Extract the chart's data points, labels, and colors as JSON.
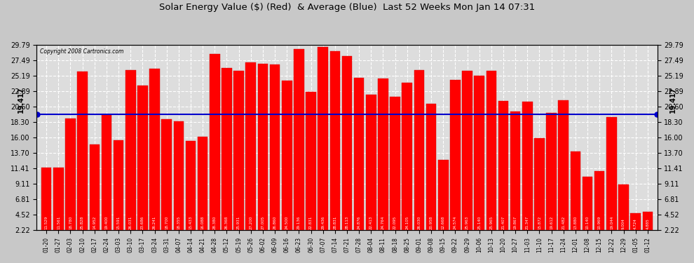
{
  "title": "Solar Energy Value ($) (Red)  & Average (Blue)  Last 52 Weeks Mon Jan 14 07:31",
  "copyright": "Copyright 2008 Cartronics.com",
  "average": 19.417,
  "ylim_min": 2.22,
  "ylim_max": 29.79,
  "yticks": [
    2.22,
    4.52,
    6.81,
    9.11,
    11.41,
    13.7,
    16.0,
    18.3,
    20.6,
    22.89,
    25.19,
    27.49,
    29.79
  ],
  "bar_color": "#FF0000",
  "avg_line_color": "#0000CC",
  "background_color": "#DDDDDD",
  "grid_color": "#FFFFFF",
  "labels": [
    "01-20",
    "01-27",
    "02-03",
    "02-10",
    "02-17",
    "02-24",
    "03-03",
    "03-10",
    "03-17",
    "03-24",
    "03-31",
    "04-07",
    "04-14",
    "04-21",
    "04-28",
    "05-12",
    "05-19",
    "05-26",
    "06-02",
    "06-09",
    "06-16",
    "06-23",
    "06-30",
    "07-07",
    "07-14",
    "07-21",
    "07-28",
    "08-04",
    "08-11",
    "08-18",
    "08-25",
    "09-01",
    "09-08",
    "09-15",
    "09-22",
    "09-29",
    "10-06",
    "10-13",
    "10-20",
    "10-27",
    "11-03",
    "11-10",
    "11-17",
    "11-24",
    "12-01",
    "12-08",
    "12-15",
    "12-22",
    "12-29",
    "01-05",
    "01-12"
  ],
  "values": [
    11.529,
    11.561,
    18.78,
    25.828,
    14.952,
    19.4,
    15.591,
    26.031,
    23.686,
    26.241,
    18.7,
    18.355,
    15.433,
    16.088,
    28.38,
    26.368,
    25.931,
    27.2,
    27.005,
    26.86,
    24.5,
    29.136,
    22.831,
    29.436,
    28.831,
    28.113,
    24.876,
    22.413,
    24.764,
    22.095,
    24.105,
    26.03,
    20.958,
    12.668,
    24.574,
    25.963,
    25.14,
    25.965,
    21.407,
    19.867,
    21.347,
    15.872,
    19.612,
    21.482,
    13.88,
    10.14,
    10.969,
    19.044,
    9.004,
    4.724,
    4.885
  ],
  "value_labels": [
    "11.529",
    "11.561",
    "18.780",
    "25.828",
    "14.952",
    "19.400",
    "15.591",
    "26.031",
    "23.686",
    "26.241",
    "18.700",
    "18.355",
    "15.433",
    "16.088",
    "28.380",
    "26.368",
    "25.931",
    "27.200",
    "27.005",
    "26.860",
    "24.500",
    "29.136",
    "22.831",
    "29.436",
    "28.831",
    "28.113",
    "24.876",
    "22.413",
    "24.764",
    "22.095",
    "24.105",
    "26.030",
    "20.958",
    "12.668",
    "24.574",
    "25.963",
    "25.140",
    "25.965",
    "21.407",
    "19.867",
    "21.347",
    "15.872",
    "19.612",
    "21.482",
    "13.880",
    "10.140",
    "10.969",
    "19.044",
    "9.004",
    "4.724",
    "4.885"
  ]
}
